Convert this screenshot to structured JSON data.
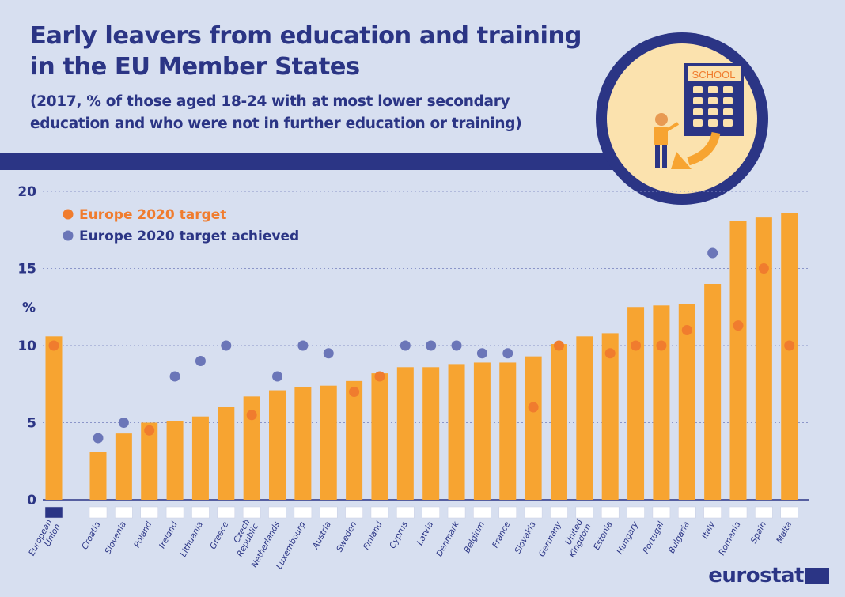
{
  "header": {
    "title_line1": "Early leavers from education and training",
    "title_line2": "in the EU Member States",
    "subtitle_line1": "(2017, % of those aged 18-24 with at most lower secondary",
    "subtitle_line2": "education and who were not in further education or training)"
  },
  "illustration": {
    "school_sign": "SCHOOL"
  },
  "brand": {
    "name": "eurostat"
  },
  "colors": {
    "bar": "#f7a431",
    "target": "#f07c2e",
    "achieved": "#6b76b8",
    "navy": "#2b3585",
    "background": "#d7dff0"
  },
  "chart_data": {
    "type": "bar",
    "ylabel": "%",
    "ylim": [
      0,
      20
    ],
    "yticks": [
      0,
      5,
      10,
      15,
      20
    ],
    "grid": true,
    "legend_position": "top-left",
    "legend": [
      {
        "label": "Europe 2020 target",
        "color": "#f07c2e"
      },
      {
        "label": "Europe 2020 target achieved",
        "color": "#6b76b8"
      }
    ],
    "categories": [
      "European\nUnion",
      "Croatia",
      "Slovenia",
      "Poland",
      "Ireland",
      "Lithuania",
      "Greece",
      "Czech\nRepublic",
      "Netherlands",
      "Luxembourg",
      "Austria",
      "Sweden",
      "Finland",
      "Cyprus",
      "Latvia",
      "Denmark",
      "Belgium",
      "France",
      "Slovakia",
      "Germany",
      "United\nKingdom",
      "Estonia",
      "Hungary",
      "Portugal",
      "Bulgaria",
      "Italy",
      "Romania",
      "Spain",
      "Malta"
    ],
    "series": [
      {
        "name": "",
        "values": [
          10.6,
          3.1,
          4.3,
          5.0,
          5.1,
          5.4,
          6.0,
          6.7,
          7.1,
          7.3,
          7.4,
          7.7,
          8.2,
          8.6,
          8.6,
          8.8,
          8.9,
          8.9,
          9.3,
          10.1,
          10.6,
          10.8,
          12.5,
          12.6,
          12.7,
          14.0,
          18.1,
          18.3,
          18.6
        ]
      }
    ],
    "targets": [
      10,
      4,
      5,
      4.5,
      8,
      9,
      10,
      5.5,
      8,
      10,
      9.5,
      7,
      8,
      10,
      10,
      10,
      9.5,
      9.5,
      6,
      10,
      null,
      9.5,
      10,
      10,
      11,
      16,
      11.3,
      15,
      10
    ],
    "target_achieved": [
      false,
      true,
      true,
      false,
      true,
      true,
      true,
      false,
      true,
      true,
      true,
      false,
      false,
      true,
      true,
      true,
      true,
      true,
      false,
      false,
      null,
      false,
      false,
      false,
      false,
      true,
      false,
      false,
      false
    ]
  }
}
